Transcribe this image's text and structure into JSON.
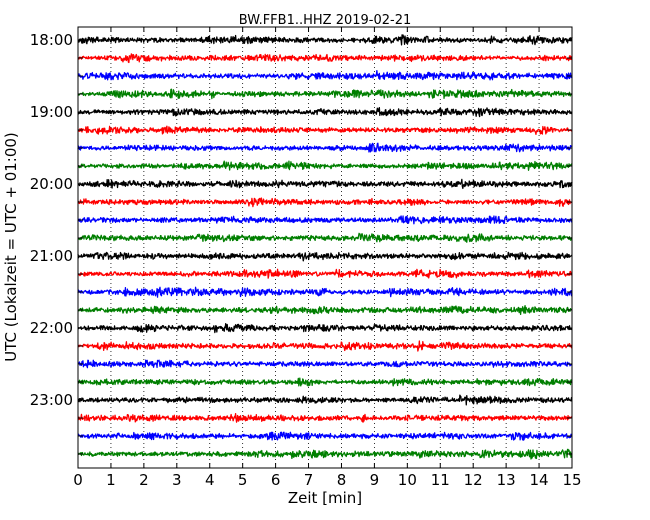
{
  "chart_data": {
    "type": "line",
    "title": "BW.FFB1..HHZ 2019-02-21",
    "xlabel": "Zeit  [min]",
    "ylabel": "UTC (Lokalzeit = UTC + 01:00)",
    "xlim": [
      0,
      15
    ],
    "x_ticks": [
      "0",
      "1",
      "2",
      "3",
      "4",
      "5",
      "6",
      "7",
      "8",
      "9",
      "10",
      "11",
      "12",
      "13",
      "14",
      "15"
    ],
    "y_tick_labels": [
      "18:00",
      "19:00",
      "20:00",
      "21:00",
      "22:00",
      "23:00"
    ],
    "grid": "vertical dotted lines at each minute",
    "trace_colors": [
      "#000000",
      "#ff0000",
      "#0000ff",
      "#007f00"
    ],
    "traces": [
      {
        "start": "18:00",
        "color": "#000000"
      },
      {
        "start": "18:15",
        "color": "#ff0000"
      },
      {
        "start": "18:30",
        "color": "#0000ff"
      },
      {
        "start": "18:45",
        "color": "#007f00"
      },
      {
        "start": "19:00",
        "color": "#000000"
      },
      {
        "start": "19:15",
        "color": "#ff0000"
      },
      {
        "start": "19:30",
        "color": "#0000ff"
      },
      {
        "start": "19:45",
        "color": "#007f00"
      },
      {
        "start": "20:00",
        "color": "#000000"
      },
      {
        "start": "20:15",
        "color": "#ff0000"
      },
      {
        "start": "20:30",
        "color": "#0000ff"
      },
      {
        "start": "20:45",
        "color": "#007f00"
      },
      {
        "start": "21:00",
        "color": "#000000"
      },
      {
        "start": "21:15",
        "color": "#ff0000"
      },
      {
        "start": "21:30",
        "color": "#0000ff"
      },
      {
        "start": "21:45",
        "color": "#007f00"
      },
      {
        "start": "22:00",
        "color": "#000000"
      },
      {
        "start": "22:15",
        "color": "#ff0000"
      },
      {
        "start": "22:30",
        "color": "#0000ff"
      },
      {
        "start": "22:45",
        "color": "#007f00"
      },
      {
        "start": "23:00",
        "color": "#000000"
      },
      {
        "start": "23:15",
        "color": "#ff0000"
      },
      {
        "start": "23:30",
        "color": "#0000ff"
      },
      {
        "start": "23:45",
        "color": "#007f00"
      }
    ]
  }
}
